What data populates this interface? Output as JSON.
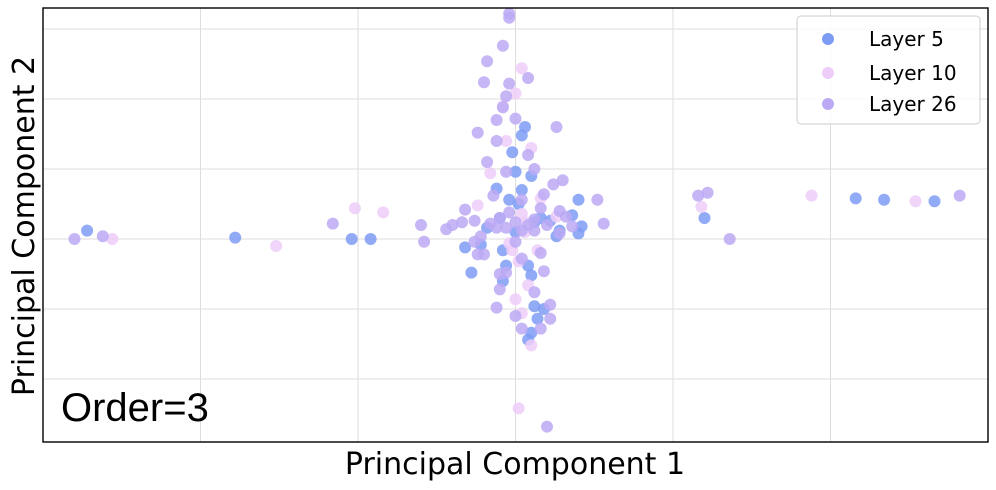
{
  "chart_data": {
    "type": "scatter",
    "title": "",
    "xlabel": "Principal Component 1",
    "ylabel": "Principal Component 2",
    "xlim": [
      -1.5,
      1.5
    ],
    "ylim": [
      -1.45,
      1.65
    ],
    "grid": true,
    "tick_labels_shown": false,
    "legend_position": "top-right",
    "annotation": "Order=3",
    "series": [
      {
        "name": "Layer 5",
        "color": "#7f9cf5",
        "points": [
          [
            -1.36,
            0.06
          ],
          [
            -0.89,
            0.01
          ],
          [
            -0.52,
            0.0
          ],
          [
            -0.46,
            0.0
          ],
          [
            -0.16,
            -0.06
          ],
          [
            -0.11,
            -0.04
          ],
          [
            -0.05,
            0.15
          ],
          [
            0.06,
            0.12
          ],
          [
            0.14,
            0.06
          ],
          [
            0.2,
            0.28
          ],
          [
            0.2,
            0.04
          ],
          [
            0.21,
            0.09
          ],
          [
            0.18,
            0.17
          ],
          [
            0.08,
            0.15
          ],
          [
            0.0,
            0.05
          ],
          [
            -0.02,
            0.28
          ],
          [
            0.02,
            0.35
          ],
          [
            0.05,
            0.45
          ],
          [
            0.0,
            0.48
          ],
          [
            -0.01,
            0.62
          ],
          [
            0.03,
            0.8
          ],
          [
            0.02,
            0.74
          ],
          [
            -0.04,
            -0.08
          ],
          [
            -0.03,
            -0.19
          ],
          [
            0.04,
            -0.19
          ],
          [
            0.05,
            -0.26
          ],
          [
            0.06,
            -0.48
          ],
          [
            0.09,
            -0.5
          ],
          [
            0.07,
            -0.57
          ],
          [
            0.05,
            -0.67
          ],
          [
            0.04,
            -0.72
          ],
          [
            -0.04,
            -0.3
          ],
          [
            -0.14,
            -0.24
          ],
          [
            0.13,
            0.02
          ],
          [
            -0.09,
            0.08
          ],
          [
            0.6,
            0.15
          ],
          [
            1.08,
            0.29
          ],
          [
            1.17,
            0.28
          ],
          [
            1.33,
            0.27
          ],
          [
            0.11,
            0.13
          ],
          [
            -0.06,
            0.36
          ],
          [
            0.01,
            0.25
          ]
        ]
      },
      {
        "name": "Layer 10",
        "color": "#eecdf8",
        "points": [
          [
            -1.28,
            0.0
          ],
          [
            -0.76,
            -0.05
          ],
          [
            -0.51,
            0.22
          ],
          [
            -0.42,
            0.19
          ],
          [
            0.59,
            0.23
          ],
          [
            0.94,
            0.31
          ],
          [
            1.27,
            0.27
          ],
          [
            0.01,
            -1.21
          ],
          [
            -0.02,
            -0.03
          ],
          [
            0.03,
            0.05
          ],
          [
            0.01,
            -0.16
          ],
          [
            0.04,
            -0.33
          ],
          [
            0.0,
            -0.43
          ],
          [
            0.02,
            -0.53
          ],
          [
            0.05,
            -0.76
          ],
          [
            -0.08,
            0.47
          ],
          [
            -0.04,
            0.95
          ],
          [
            0.0,
            1.04
          ],
          [
            0.02,
            1.22
          ],
          [
            0.05,
            0.65
          ],
          [
            -0.03,
            0.7
          ],
          [
            0.02,
            0.18
          ],
          [
            0.08,
            0.29
          ],
          [
            -0.12,
            0.24
          ],
          [
            0.13,
            0.16
          ],
          [
            -0.01,
            -0.08
          ],
          [
            0.03,
            0.12
          ],
          [
            0.07,
            -0.08
          ]
        ]
      },
      {
        "name": "Layer 26",
        "color": "#bca9f4",
        "points": [
          [
            -1.4,
            0.0
          ],
          [
            -1.31,
            0.02
          ],
          [
            -0.58,
            0.11
          ],
          [
            -0.3,
            0.1
          ],
          [
            -0.29,
            -0.02
          ],
          [
            -0.22,
            0.07
          ],
          [
            -0.2,
            0.1
          ],
          [
            -0.17,
            0.12
          ],
          [
            -0.16,
            0.21
          ],
          [
            -0.13,
            0.13
          ],
          [
            -0.12,
            -0.11
          ],
          [
            -0.1,
            -0.11
          ],
          [
            -0.08,
            0.11
          ],
          [
            -0.06,
            0.08
          ],
          [
            -0.05,
            0.15
          ],
          [
            -0.03,
            0.08
          ],
          [
            -0.02,
            0.19
          ],
          [
            0.0,
            0.12
          ],
          [
            0.02,
            0.06
          ],
          [
            0.04,
            0.1
          ],
          [
            0.06,
            0.14
          ],
          [
            0.08,
            0.22
          ],
          [
            0.1,
            0.1
          ],
          [
            0.14,
            0.2
          ],
          [
            0.16,
            0.16
          ],
          [
            0.18,
            0.09
          ],
          [
            0.26,
            0.28
          ],
          [
            0.28,
            0.11
          ],
          [
            0.09,
            0.32
          ],
          [
            0.12,
            0.39
          ],
          [
            0.15,
            0.42
          ],
          [
            0.06,
            0.5
          ],
          [
            -0.03,
            0.48
          ],
          [
            0.04,
            0.6
          ],
          [
            -0.09,
            0.55
          ],
          [
            -0.06,
            0.7
          ],
          [
            0.0,
            0.86
          ],
          [
            -0.03,
            1.02
          ],
          [
            -0.02,
            1.11
          ],
          [
            0.04,
            1.15
          ],
          [
            -0.1,
            1.12
          ],
          [
            -0.09,
            1.27
          ],
          [
            -0.04,
            1.38
          ],
          [
            -0.02,
            1.58
          ],
          [
            -0.02,
            1.61
          ],
          [
            -0.12,
            0.76
          ],
          [
            -0.06,
            0.85
          ],
          [
            -0.04,
            0.94
          ],
          [
            0.13,
            0.8
          ],
          [
            0.02,
            -0.14
          ],
          [
            -0.03,
            -0.24
          ],
          [
            -0.05,
            -0.25
          ],
          [
            0.09,
            -0.23
          ],
          [
            0.06,
            -0.38
          ],
          [
            0.11,
            -0.47
          ],
          [
            0.11,
            -0.57
          ],
          [
            -0.05,
            -0.36
          ],
          [
            0.0,
            -0.55
          ],
          [
            0.02,
            -0.64
          ],
          [
            0.08,
            -0.64
          ],
          [
            -0.06,
            -0.49
          ],
          [
            0.1,
            -1.34
          ],
          [
            0.68,
            0.0
          ],
          [
            0.58,
            0.31
          ],
          [
            0.61,
            0.33
          ],
          [
            1.41,
            0.31
          ],
          [
            0.06,
            0.06
          ],
          [
            -0.11,
            0.02
          ],
          [
            0.14,
            0.04
          ],
          [
            0.02,
            0.28
          ],
          [
            -0.07,
            0.31
          ],
          [
            0.08,
            -0.1
          ],
          [
            -0.13,
            -0.02
          ],
          [
            0.0,
            -0.02
          ]
        ]
      }
    ]
  }
}
